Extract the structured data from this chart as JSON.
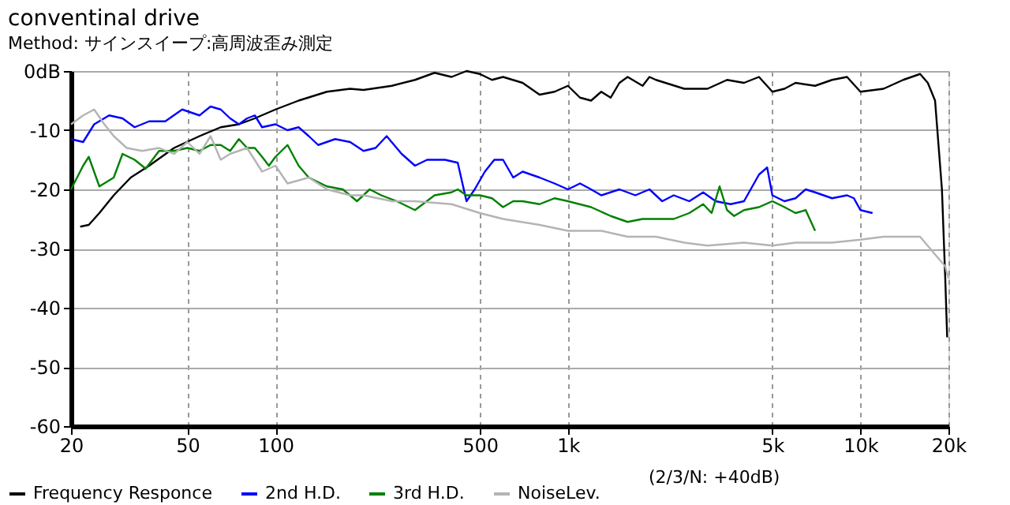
{
  "chart_data": {
    "type": "line",
    "title": "conventinal drive",
    "subtitle": "Method: サインスイープ:高周波歪み測定",
    "annotations": [
      "(2/3/N: +40dB)"
    ],
    "log": "x",
    "grid": true,
    "legend": "bottom",
    "xlim": [
      20,
      20000
    ],
    "xticks": [
      20,
      50,
      100,
      500,
      {
        "value": 1000,
        "label": "1k"
      },
      {
        "value": 5000,
        "label": "5k"
      },
      {
        "value": 10000,
        "label": "10k"
      },
      {
        "value": 20000,
        "label": "20k"
      }
    ],
    "ylim": [
      -60,
      0
    ],
    "yticks": [
      {
        "value": 0,
        "label": "0dB"
      },
      -10,
      -20,
      -30,
      -40,
      -50,
      -60
    ],
    "series": [
      {
        "name": "Frequency Responce",
        "color": "#000000",
        "x": [
          21.5,
          23,
          25,
          28,
          32,
          37,
          45,
          55,
          65,
          75,
          85,
          100,
          120,
          150,
          180,
          200,
          250,
          300,
          350,
          400,
          450,
          500,
          550,
          600,
          700,
          800,
          900,
          1000,
          1100,
          1200,
          1300,
          1400,
          1500,
          1600,
          1800,
          1900,
          2000,
          2500,
          3000,
          3500,
          4000,
          4500,
          5000,
          5500,
          6000,
          7000,
          8000,
          9000,
          10000,
          12000,
          14000,
          16000,
          17000,
          18000,
          19000,
          19500,
          19800
        ],
        "values": [
          -26.3,
          -26,
          -24,
          -21,
          -18,
          -16,
          -13,
          -11,
          -9.5,
          -9,
          -8,
          -6.5,
          -5,
          -3.5,
          -3,
          -3.2,
          -2.5,
          -1.5,
          -0.3,
          -1,
          0,
          -0.5,
          -1.5,
          -1,
          -2,
          -4,
          -3.5,
          -2.5,
          -4.5,
          -5,
          -3.5,
          -4.5,
          -2,
          -1,
          -2.5,
          -1,
          -1.5,
          -3,
          -3,
          -1.5,
          -2,
          -1,
          -3.5,
          -3,
          -2,
          -2.5,
          -1.5,
          -1,
          -3.5,
          -3,
          -1.5,
          -0.5,
          -2,
          -5,
          -20,
          -35,
          -45
        ]
      },
      {
        "name": "2nd H.D.",
        "color": "#0000ff",
        "x": [
          20,
          22,
          24,
          27,
          30,
          33,
          37,
          42,
          48,
          55,
          60,
          65,
          70,
          75,
          80,
          85,
          90,
          100,
          110,
          120,
          130,
          140,
          160,
          180,
          200,
          220,
          240,
          270,
          300,
          330,
          380,
          420,
          450,
          480,
          520,
          560,
          600,
          650,
          700,
          800,
          900,
          1000,
          1100,
          1200,
          1300,
          1500,
          1700,
          1900,
          2100,
          2300,
          2600,
          2900,
          3200,
          3600,
          4000,
          4500,
          4800,
          5000,
          5500,
          6000,
          6500,
          7000,
          8000,
          9000,
          9500,
          10000,
          11000
        ],
        "values": [
          -11.5,
          -12,
          -9,
          -7.5,
          -8,
          -9.5,
          -8.5,
          -8.5,
          -6.5,
          -7.5,
          -6,
          -6.5,
          -8,
          -9,
          -8,
          -7.5,
          -9.5,
          -9,
          -10,
          -9.5,
          -11,
          -12.5,
          -11.5,
          -12,
          -13.5,
          -13,
          -11,
          -14,
          -16,
          -15,
          -15,
          -15.5,
          -22,
          -20,
          -17,
          -15,
          -15,
          -18,
          -17,
          -18,
          -19,
          -20,
          -19,
          -20,
          -21,
          -20,
          -21,
          -20,
          -22,
          -21,
          -22,
          -20.5,
          -22,
          -22.5,
          -22,
          -17.5,
          -16.3,
          -21,
          -22,
          -21.5,
          -20,
          -20.5,
          -21.5,
          -21,
          -21.5,
          -23.5,
          -24
        ]
      },
      {
        "name": "3rd H.D.",
        "color": "#008000",
        "x": [
          20,
          22,
          23,
          25,
          28,
          30,
          33,
          36,
          40,
          45,
          50,
          55,
          60,
          65,
          70,
          75,
          80,
          85,
          90,
          95,
          100,
          110,
          120,
          130,
          150,
          170,
          190,
          210,
          230,
          260,
          300,
          350,
          400,
          420,
          450,
          500,
          550,
          600,
          650,
          700,
          800,
          900,
          1000,
          1200,
          1400,
          1600,
          1800,
          2000,
          2300,
          2600,
          2900,
          3100,
          3300,
          3500,
          3700,
          4000,
          4500,
          5000,
          5500,
          6000,
          6500,
          7000
        ],
        "values": [
          -20,
          -16,
          -14.5,
          -19.5,
          -18,
          -14,
          -15,
          -16.5,
          -13.5,
          -13.5,
          -13,
          -13.5,
          -12.5,
          -12.5,
          -13.5,
          -11.5,
          -13,
          -13,
          -14.5,
          -16,
          -14.5,
          -12.5,
          -16,
          -18,
          -19.5,
          -20,
          -22,
          -20,
          -21,
          -22,
          -23.5,
          -21,
          -20.5,
          -20,
          -21,
          -21,
          -21.5,
          -23,
          -22,
          -22,
          -22.5,
          -21.5,
          -22,
          -23,
          -24.5,
          -25.5,
          -25,
          -25,
          -25,
          -24,
          -22.5,
          -24,
          -19.5,
          -23.5,
          -24.5,
          -23.5,
          -23,
          -22,
          -23,
          -24,
          -23.5,
          -27
        ]
      },
      {
        "name": "NoiseLev.",
        "color": "#b4b4b4",
        "x": [
          20,
          22,
          24,
          26,
          28,
          31,
          35,
          40,
          45,
          50,
          55,
          60,
          65,
          70,
          80,
          90,
          100,
          110,
          130,
          150,
          180,
          200,
          250,
          300,
          400,
          500,
          600,
          800,
          1000,
          1300,
          1600,
          2000,
          2500,
          3000,
          4000,
          5000,
          6000,
          8000,
          10000,
          12000,
          14000,
          16000,
          18000,
          19500,
          20000
        ],
        "values": [
          -9,
          -7.5,
          -6.5,
          -9,
          -11,
          -13,
          -13.5,
          -13,
          -14,
          -12,
          -14,
          -11,
          -15,
          -14,
          -13,
          -17,
          -16,
          -19,
          -18,
          -20,
          -21,
          -21,
          -22,
          -22,
          -22.5,
          -24,
          -25,
          -26,
          -27,
          -27,
          -28,
          -28,
          -29,
          -29.5,
          -29,
          -29.5,
          -29,
          -29,
          -28.5,
          -28,
          -28,
          -28,
          -31,
          -33,
          -35
        ]
      }
    ]
  }
}
